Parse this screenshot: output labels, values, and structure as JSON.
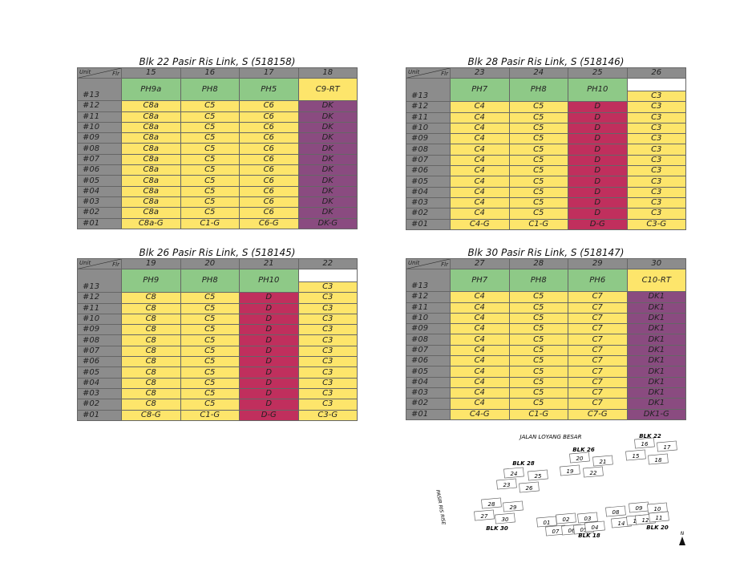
{
  "corner_label": {
    "unit": "Unit",
    "floor": "Flr"
  },
  "floors": [
    "#12",
    "#11",
    "#10",
    "#09",
    "#08",
    "#07",
    "#06",
    "#05",
    "#04",
    "#03",
    "#02",
    "#01"
  ],
  "top_floor": "#13",
  "colors": {
    "green": "#8ec987",
    "yellow": "#fde56b",
    "purple": "#8a4b80",
    "red": "#c02f5d",
    "header": "#8c8c8c"
  },
  "blocks": [
    {
      "title": "Blk 22 Pasir Ris Link, S (518158)",
      "columns": [
        {
          "unit": "15",
          "ph": "PH9a",
          "ph_color": "green",
          "typical": "C8a",
          "ground": "C8a-G",
          "color": "yellow"
        },
        {
          "unit": "16",
          "ph": "PH8",
          "ph_color": "green",
          "typical": "C5",
          "ground": "C1-G",
          "color": "yellow"
        },
        {
          "unit": "17",
          "ph": "PH5",
          "ph_color": "green",
          "typical": "C6",
          "ground": "C6-G",
          "color": "yellow"
        },
        {
          "unit": "18",
          "ph": "C9-RT",
          "ph_color": "yellow",
          "typical": "DK",
          "ground": "DK-G",
          "color": "purple"
        }
      ]
    },
    {
      "title": "Blk 28 Pasir Ris Link, S (518146)",
      "columns": [
        {
          "unit": "23",
          "ph": "PH7",
          "ph_color": "green",
          "typical": "C4",
          "ground": "C4-G",
          "color": "yellow"
        },
        {
          "unit": "24",
          "ph": "PH8",
          "ph_color": "green",
          "typical": "C5",
          "ground": "C1-G",
          "color": "yellow"
        },
        {
          "unit": "25",
          "ph": "PH10",
          "ph_color": "green",
          "typical": "D",
          "ground": "D-G",
          "color": "red"
        },
        {
          "unit": "26",
          "ph": "C3",
          "ph_color": "split",
          "typical": "C3",
          "ground": "C3-G",
          "color": "yellow"
        }
      ]
    },
    {
      "title": "Blk 26 Pasir Ris Link, S (518145)",
      "columns": [
        {
          "unit": "19",
          "ph": "PH9",
          "ph_color": "green",
          "typical": "C8",
          "ground": "C8-G",
          "color": "yellow"
        },
        {
          "unit": "20",
          "ph": "PH8",
          "ph_color": "green",
          "typical": "C5",
          "ground": "C1-G",
          "color": "yellow"
        },
        {
          "unit": "21",
          "ph": "PH10",
          "ph_color": "green",
          "typical": "D",
          "ground": "D-G",
          "color": "red"
        },
        {
          "unit": "22",
          "ph": "C3",
          "ph_color": "split",
          "typical": "C3",
          "ground": "C3-G",
          "color": "yellow"
        }
      ]
    },
    {
      "title": "Blk 30 Pasir Ris Link, S (518147)",
      "columns": [
        {
          "unit": "27",
          "ph": "PH7",
          "ph_color": "green",
          "typical": "C4",
          "ground": "C4-G",
          "color": "yellow"
        },
        {
          "unit": "28",
          "ph": "PH8",
          "ph_color": "green",
          "typical": "C5",
          "ground": "C1-G",
          "color": "yellow"
        },
        {
          "unit": "29",
          "ph": "PH6",
          "ph_color": "green",
          "typical": "C7",
          "ground": "C7-G",
          "color": "yellow"
        },
        {
          "unit": "30",
          "ph": "C10-RT",
          "ph_color": "yellow",
          "typical": "DK1",
          "ground": "DK1-G",
          "color": "purple"
        }
      ]
    }
  ],
  "site_plan": {
    "road": "JALAN LOYANG BESAR",
    "side_road": "PASIR RIS RISE",
    "north": "N",
    "block_labels": [
      "BLK 22",
      "BLK 26",
      "BLK 28",
      "BLK 30",
      "BLK 18",
      "BLK 20"
    ],
    "units": [
      "16",
      "17",
      "15",
      "18",
      "20",
      "21",
      "19",
      "22",
      "24",
      "25",
      "23",
      "26",
      "28",
      "29",
      "27",
      "30",
      "01",
      "02",
      "03",
      "07",
      "06",
      "05",
      "04",
      "08",
      "09",
      "10",
      "14",
      "13",
      "12",
      "11"
    ]
  }
}
